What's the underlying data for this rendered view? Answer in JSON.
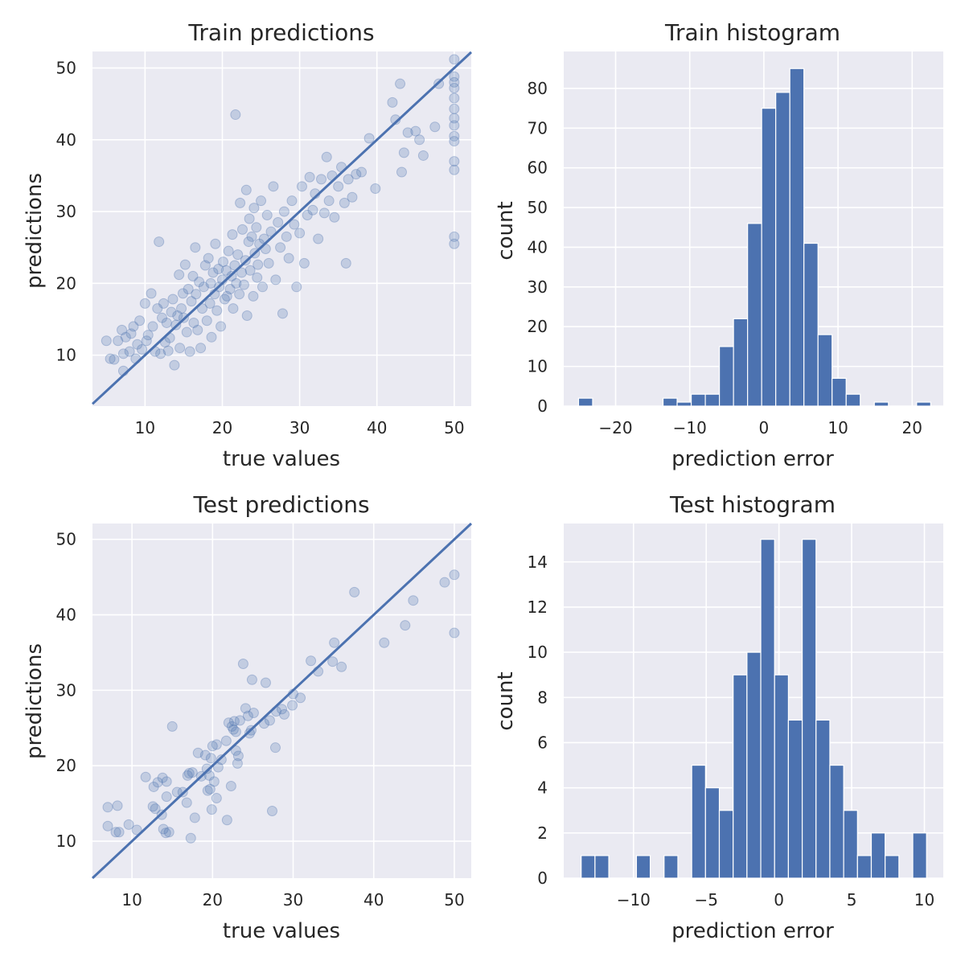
{
  "colors": {
    "series": "#4c72b0",
    "plot_background": "#eaeaf2",
    "grid": "#ffffff",
    "text": "#262626"
  },
  "chart_data": [
    {
      "id": "train-scatter",
      "type": "scatter",
      "title": "Train predictions",
      "xlabel": "true values",
      "ylabel": "predictions",
      "xlim": [
        3.2,
        52.2
      ],
      "ylim": [
        2.9,
        52.3
      ],
      "xticks": [
        10,
        20,
        30,
        40,
        50
      ],
      "yticks": [
        10,
        20,
        30,
        40,
        50
      ],
      "grid": true,
      "reference_line": "y = x",
      "points": [
        [
          5,
          12
        ],
        [
          5.5,
          9.5
        ],
        [
          6,
          9.4
        ],
        [
          6.5,
          12
        ],
        [
          7,
          13.5
        ],
        [
          7.2,
          10.2
        ],
        [
          7.2,
          7.8
        ],
        [
          7.5,
          12.5
        ],
        [
          8,
          10.5
        ],
        [
          8.2,
          13
        ],
        [
          8.5,
          14
        ],
        [
          8.8,
          9.5
        ],
        [
          9,
          11.5
        ],
        [
          9.3,
          14.8
        ],
        [
          9.6,
          10.8
        ],
        [
          10,
          17.2
        ],
        [
          10.2,
          12
        ],
        [
          10.4,
          12.8
        ],
        [
          10.8,
          18.6
        ],
        [
          11,
          14
        ],
        [
          11.3,
          10.5
        ],
        [
          11.6,
          16.5
        ],
        [
          11.8,
          25.8
        ],
        [
          12,
          10.2
        ],
        [
          12.2,
          15.2
        ],
        [
          12.4,
          17.2
        ],
        [
          12.6,
          11.8
        ],
        [
          12.8,
          14.5
        ],
        [
          13,
          10.6
        ],
        [
          13.2,
          12.4
        ],
        [
          13.4,
          16
        ],
        [
          13.6,
          17.8
        ],
        [
          13.8,
          8.6
        ],
        [
          14,
          14.2
        ],
        [
          14.2,
          15.5
        ],
        [
          14.4,
          21.2
        ],
        [
          14.5,
          11
        ],
        [
          14.7,
          16.5
        ],
        [
          14.9,
          18.6
        ],
        [
          15,
          15.2
        ],
        [
          15.2,
          22.6
        ],
        [
          15.4,
          13.2
        ],
        [
          15.6,
          19.2
        ],
        [
          15.8,
          10.5
        ],
        [
          16,
          17.5
        ],
        [
          16.2,
          21
        ],
        [
          16.3,
          14.5
        ],
        [
          16.5,
          25
        ],
        [
          16.6,
          18.5
        ],
        [
          16.8,
          13.5
        ],
        [
          17,
          20.2
        ],
        [
          17.2,
          11
        ],
        [
          17.4,
          16.5
        ],
        [
          17.6,
          19.5
        ],
        [
          17.8,
          22.5
        ],
        [
          18,
          14.8
        ],
        [
          18.2,
          23.5
        ],
        [
          18.4,
          17.2
        ],
        [
          18.5,
          20
        ],
        [
          18.6,
          12.5
        ],
        [
          18.8,
          21.5
        ],
        [
          19,
          18.5
        ],
        [
          19.1,
          25.5
        ],
        [
          19.3,
          16.2
        ],
        [
          19.5,
          22
        ],
        [
          19.6,
          19.5
        ],
        [
          19.8,
          14
        ],
        [
          20,
          20.5
        ],
        [
          20.1,
          23
        ],
        [
          20.3,
          17.8
        ],
        [
          20.5,
          21.8
        ],
        [
          20.6,
          18.2
        ],
        [
          20.8,
          24.5
        ],
        [
          21,
          19.2
        ],
        [
          21.2,
          21
        ],
        [
          21.3,
          26.8
        ],
        [
          21.4,
          16.5
        ],
        [
          21.6,
          22.5
        ],
        [
          21.7,
          43.5
        ],
        [
          21.8,
          20
        ],
        [
          22,
          24
        ],
        [
          22.2,
          18.5
        ],
        [
          22.3,
          31.2
        ],
        [
          22.5,
          21.5
        ],
        [
          22.6,
          27.5
        ],
        [
          22.8,
          19.8
        ],
        [
          23,
          23.2
        ],
        [
          23.1,
          33
        ],
        [
          23.2,
          15.5
        ],
        [
          23.4,
          25.8
        ],
        [
          23.5,
          29
        ],
        [
          23.6,
          21.8
        ],
        [
          23.8,
          26.5
        ],
        [
          24,
          18.2
        ],
        [
          24.1,
          30.5
        ],
        [
          24.2,
          24.2
        ],
        [
          24.4,
          27.8
        ],
        [
          24.5,
          20.8
        ],
        [
          24.6,
          22.6
        ],
        [
          24.8,
          25.5
        ],
        [
          25,
          31.5
        ],
        [
          25.2,
          19.5
        ],
        [
          25.4,
          26.2
        ],
        [
          25.6,
          24.8
        ],
        [
          25.8,
          29.5
        ],
        [
          26,
          22.8
        ],
        [
          26.3,
          27.2
        ],
        [
          26.6,
          33.5
        ],
        [
          26.9,
          20.5
        ],
        [
          27.2,
          28.5
        ],
        [
          27.5,
          25
        ],
        [
          27.8,
          15.8
        ],
        [
          28,
          30
        ],
        [
          28.3,
          26.5
        ],
        [
          28.6,
          23.5
        ],
        [
          29,
          31.5
        ],
        [
          29.3,
          28.2
        ],
        [
          29.6,
          19.5
        ],
        [
          30,
          27
        ],
        [
          30.3,
          33.5
        ],
        [
          30.6,
          22.8
        ],
        [
          31,
          29.5
        ],
        [
          31.3,
          34.8
        ],
        [
          31.7,
          30.2
        ],
        [
          32,
          32.5
        ],
        [
          32.4,
          26.2
        ],
        [
          32.8,
          34.5
        ],
        [
          33.2,
          29.8
        ],
        [
          33.5,
          37.6
        ],
        [
          33.8,
          31.5
        ],
        [
          34.2,
          35
        ],
        [
          34.5,
          29.2
        ],
        [
          35,
          33.5
        ],
        [
          35.4,
          36.2
        ],
        [
          35.8,
          31.2
        ],
        [
          36,
          22.8
        ],
        [
          36.3,
          34.5
        ],
        [
          36.8,
          32
        ],
        [
          37.3,
          35.2
        ],
        [
          38,
          35.5
        ],
        [
          39,
          40.2
        ],
        [
          39.8,
          33.2
        ],
        [
          42,
          45.2
        ],
        [
          42.4,
          42.8
        ],
        [
          43,
          47.8
        ],
        [
          43.2,
          35.5
        ],
        [
          43.5,
          38.2
        ],
        [
          44,
          41
        ],
        [
          45,
          41.2
        ],
        [
          45.5,
          40
        ],
        [
          46,
          37.8
        ],
        [
          47.5,
          41.8
        ],
        [
          48,
          47.8
        ],
        [
          50,
          51.2
        ],
        [
          50,
          48.8
        ],
        [
          50,
          48
        ],
        [
          50,
          47.2
        ],
        [
          50,
          45.8
        ],
        [
          50,
          44.3
        ],
        [
          50,
          43
        ],
        [
          50,
          42
        ],
        [
          50,
          40.5
        ],
        [
          50,
          39.8
        ],
        [
          50,
          37
        ],
        [
          50,
          35.8
        ],
        [
          50,
          26.5
        ],
        [
          50,
          25.5
        ]
      ]
    },
    {
      "id": "train-histogram",
      "type": "bar",
      "title": "Train histogram",
      "xlabel": "prediction error",
      "ylabel": "count",
      "xlim": [
        -27,
        24.2
      ],
      "ylim": [
        0,
        89.3
      ],
      "xticks": [
        -20,
        -10,
        0,
        10,
        20
      ],
      "xtick_labels": [
        "−20",
        "−10",
        "0",
        "10",
        "20"
      ],
      "yticks": [
        0,
        10,
        20,
        30,
        40,
        50,
        60,
        70,
        80
      ],
      "grid": true,
      "bin_edges_start": -25.0,
      "bin_width": 1.9,
      "values": [
        2,
        0,
        0,
        0,
        0,
        0,
        2,
        1,
        3,
        3,
        15,
        22,
        46,
        75,
        79,
        85,
        41,
        18,
        7,
        3,
        0,
        1,
        0,
        0,
        1
      ]
    },
    {
      "id": "test-scatter",
      "type": "scatter",
      "title": "Test predictions",
      "xlabel": "true values",
      "ylabel": "predictions",
      "xlim": [
        5.1,
        52.1
      ],
      "ylim": [
        5.1,
        52.1
      ],
      "xticks": [
        10,
        20,
        30,
        40,
        50
      ],
      "yticks": [
        10,
        20,
        30,
        40,
        50
      ],
      "grid": true,
      "reference_line": "y = x",
      "points": [
        [
          7,
          14.5
        ],
        [
          7,
          12
        ],
        [
          8,
          11.2
        ],
        [
          8.2,
          14.7
        ],
        [
          8.4,
          11.2
        ],
        [
          9.6,
          12.2
        ],
        [
          10.6,
          11.5
        ],
        [
          11.7,
          18.5
        ],
        [
          12.6,
          14.6
        ],
        [
          12.7,
          17.2
        ],
        [
          12.9,
          14.3
        ],
        [
          13.2,
          17.8
        ],
        [
          13.7,
          13.5
        ],
        [
          13.8,
          18.4
        ],
        [
          13.9,
          11.6
        ],
        [
          14.2,
          11.1
        ],
        [
          14.3,
          15.9
        ],
        [
          14.3,
          17.9
        ],
        [
          14.6,
          11.2
        ],
        [
          15,
          25.2
        ],
        [
          15.6,
          16.5
        ],
        [
          16.3,
          16.5
        ],
        [
          16.8,
          15.1
        ],
        [
          16.9,
          18.7
        ],
        [
          17.1,
          19
        ],
        [
          17.3,
          10.4
        ],
        [
          17.5,
          19.1
        ],
        [
          17.8,
          13.1
        ],
        [
          18.2,
          21.7
        ],
        [
          18.6,
          18.6
        ],
        [
          19.1,
          21.4
        ],
        [
          19.3,
          19.6
        ],
        [
          19.4,
          16.7
        ],
        [
          19.6,
          18.7
        ],
        [
          19.7,
          16.9
        ],
        [
          19.8,
          21
        ],
        [
          19.9,
          14.2
        ],
        [
          20,
          22.6
        ],
        [
          20.2,
          17.9
        ],
        [
          20.5,
          15.7
        ],
        [
          20.5,
          22.8
        ],
        [
          20.7,
          19.8
        ],
        [
          21.1,
          20.8
        ],
        [
          21.7,
          23.3
        ],
        [
          21.8,
          12.8
        ],
        [
          22,
          25.7
        ],
        [
          22.3,
          17.3
        ],
        [
          22.4,
          25.2
        ],
        [
          22.6,
          24.8
        ],
        [
          22.7,
          25.9
        ],
        [
          22.9,
          24.5
        ],
        [
          22.9,
          22
        ],
        [
          23.1,
          20.3
        ],
        [
          23.2,
          21.3
        ],
        [
          23.4,
          26
        ],
        [
          23.8,
          33.5
        ],
        [
          24.1,
          27.6
        ],
        [
          24.4,
          26.6
        ],
        [
          24.6,
          24.3
        ],
        [
          24.8,
          24.7
        ],
        [
          24.9,
          31.4
        ],
        [
          25.1,
          27
        ],
        [
          26.4,
          25.6
        ],
        [
          26.6,
          31
        ],
        [
          27.1,
          26
        ],
        [
          27.4,
          14
        ],
        [
          27.8,
          22.4
        ],
        [
          27.9,
          27.2
        ],
        [
          28.6,
          27.5
        ],
        [
          28.9,
          26.8
        ],
        [
          29.9,
          28
        ],
        [
          30,
          29.5
        ],
        [
          30.9,
          29
        ],
        [
          32.2,
          33.9
        ],
        [
          33.1,
          32.5
        ],
        [
          34.9,
          33.8
        ],
        [
          35.1,
          36.3
        ],
        [
          36,
          33.1
        ],
        [
          37.6,
          43
        ],
        [
          41.3,
          36.3
        ],
        [
          43.9,
          38.6
        ],
        [
          44.9,
          41.9
        ],
        [
          48.8,
          44.3
        ],
        [
          50,
          45.3
        ],
        [
          50,
          37.6
        ]
      ]
    },
    {
      "id": "test-histogram",
      "type": "bar",
      "title": "Test histogram",
      "xlabel": "prediction error",
      "ylabel": "count",
      "xlim": [
        -14.8,
        11.3
      ],
      "ylim": [
        0,
        15.7
      ],
      "xticks": [
        -10,
        -5,
        0,
        5,
        10
      ],
      "xtick_labels": [
        "−10",
        "−5",
        "0",
        "5",
        "10"
      ],
      "yticks": [
        0,
        2,
        4,
        6,
        8,
        10,
        12,
        14
      ],
      "grid": true,
      "bin_edges_start": -13.6,
      "bin_width": 0.95,
      "values": [
        1,
        1,
        0,
        0,
        1,
        0,
        1,
        0,
        5,
        4,
        3,
        9,
        10,
        15,
        9,
        7,
        15,
        7,
        5,
        3,
        1,
        2,
        1,
        0,
        2
      ]
    }
  ]
}
